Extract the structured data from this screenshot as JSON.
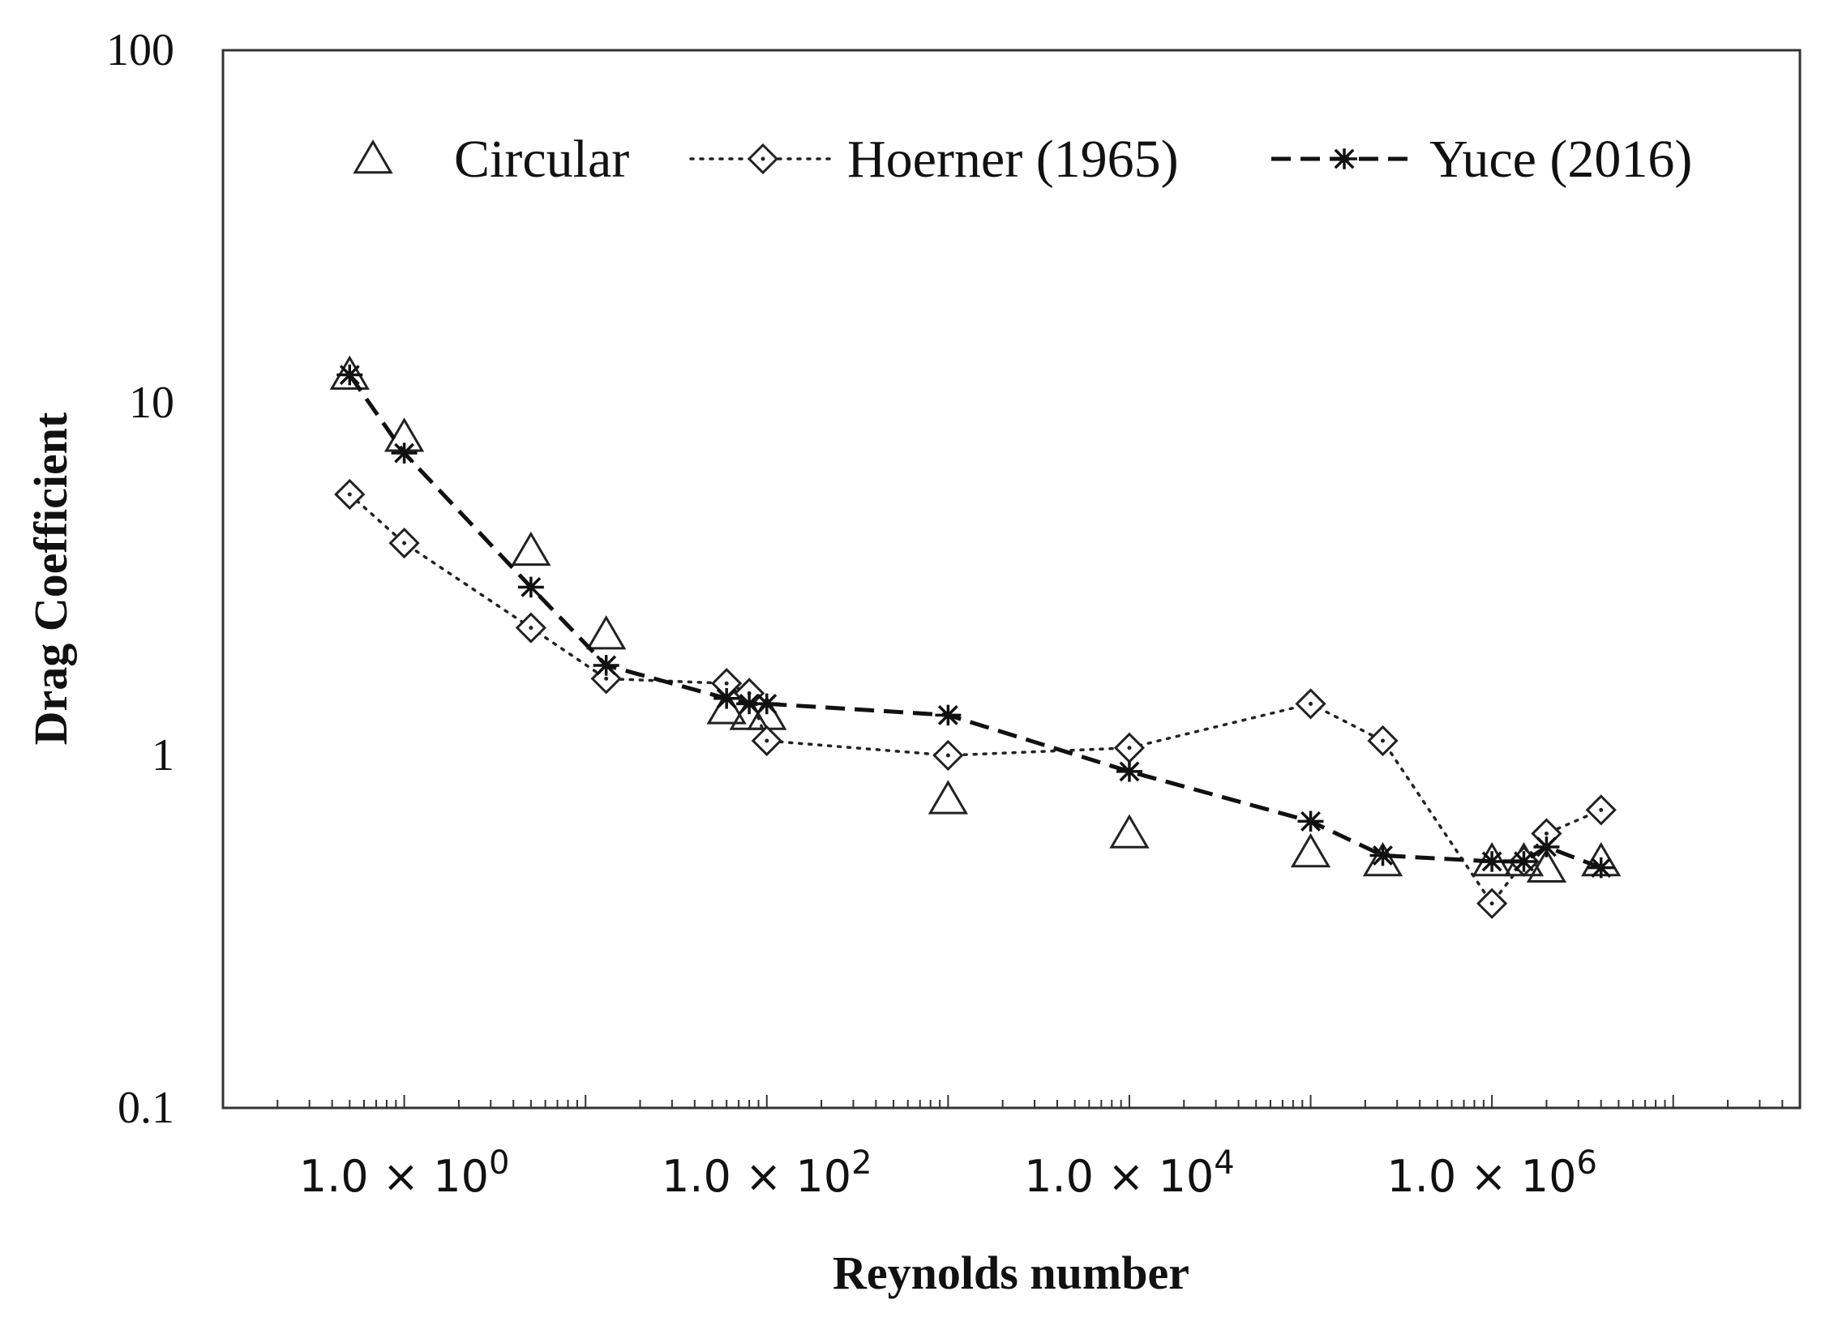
{
  "chart_data": {
    "type": "scatter",
    "title": "",
    "xlabel": "Reynolds number",
    "ylabel": "Drag Coefficient",
    "xscale": "log",
    "yscale": "log",
    "xlim": [
      0.1,
      50000000
    ],
    "ylim": [
      0.1,
      100
    ],
    "x_ticks": [
      {
        "value": 1,
        "label": "1.0 × 10",
        "exp": "0"
      },
      {
        "value": 100,
        "label": "1.0 × 10",
        "exp": "2"
      },
      {
        "value": 10000,
        "label": "1.0 × 10",
        "exp": "4"
      },
      {
        "value": 1000000,
        "label": "1.0 × 10",
        "exp": "6"
      }
    ],
    "y_ticks": [
      {
        "value": 0.1,
        "label": "0.1"
      },
      {
        "value": 1,
        "label": "1"
      },
      {
        "value": 10,
        "label": "10"
      },
      {
        "value": 100,
        "label": "100"
      }
    ],
    "legend_position": "top",
    "series": [
      {
        "name": "Circular",
        "marker": "triangle",
        "line": "none",
        "x": [
          0.5,
          1,
          5,
          13,
          60,
          80,
          100,
          1000,
          10000,
          100000,
          250000,
          1000000,
          1500000,
          2000000,
          4000000
        ],
        "y": [
          12,
          8,
          3.8,
          2.2,
          1.35,
          1.3,
          1.3,
          0.75,
          0.6,
          0.53,
          0.5,
          0.5,
          0.5,
          0.48,
          0.5
        ]
      },
      {
        "name": "Hoerner (1965)",
        "marker": "diamond",
        "line": "dotted",
        "x": [
          0.5,
          1,
          5,
          13,
          60,
          80,
          100,
          1000,
          10000,
          100000,
          250000,
          1000000,
          1500000,
          2000000,
          4000000
        ],
        "y": [
          5.5,
          4,
          2.3,
          1.65,
          1.6,
          1.5,
          1.1,
          1,
          1.05,
          1.4,
          1.1,
          0.38,
          0.5,
          0.6,
          0.7
        ]
      },
      {
        "name": "Yuce (2016)",
        "marker": "asterisk",
        "line": "dashed",
        "x": [
          0.5,
          1,
          5,
          13,
          60,
          80,
          100,
          1000,
          10000,
          100000,
          250000,
          1000000,
          1500000,
          2000000,
          4000000
        ],
        "y": [
          12,
          7.2,
          3,
          1.8,
          1.45,
          1.4,
          1.4,
          1.3,
          0.9,
          0.65,
          0.52,
          0.5,
          0.5,
          0.55,
          0.48
        ]
      }
    ]
  }
}
